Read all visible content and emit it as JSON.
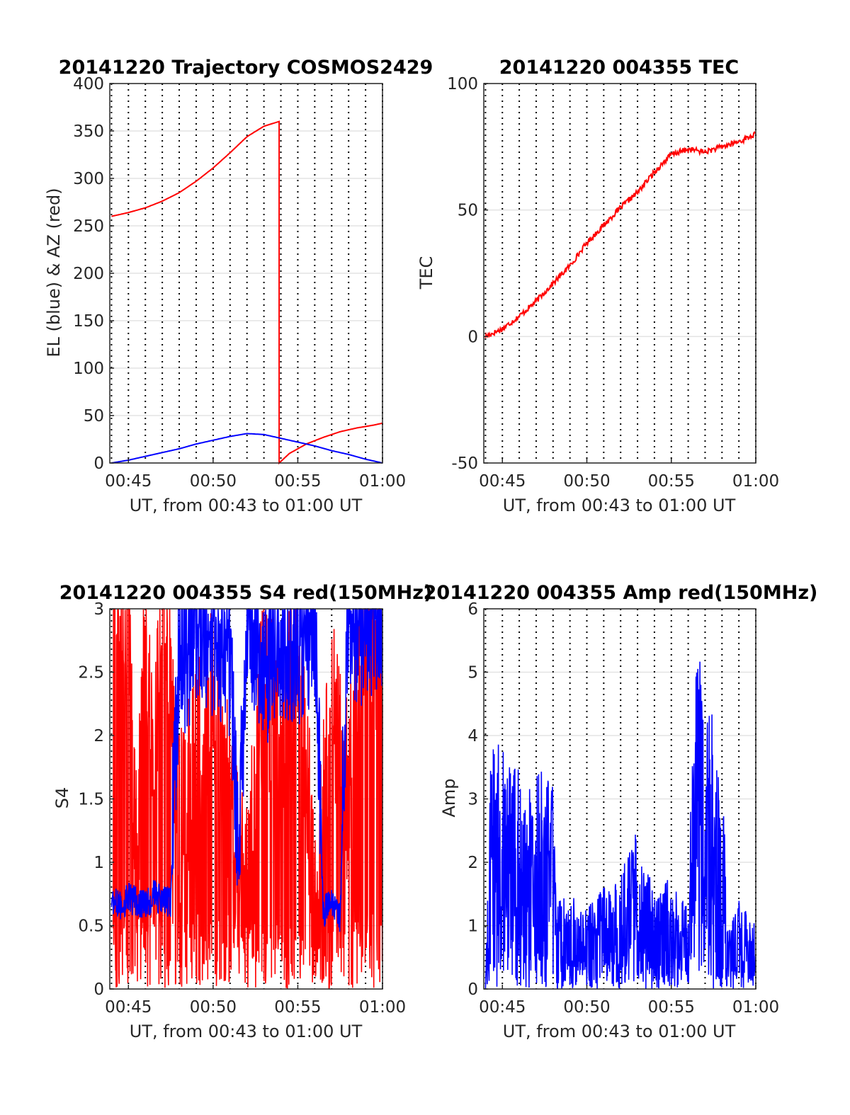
{
  "chart_data": [
    {
      "id": "traj",
      "type": "line",
      "title": "20141220 Trajectory COSMOS2429",
      "xlabel": "UT, from 00:43 to 01:00 UT",
      "ylabel": "EL (blue) & AZ (red)",
      "xlim": [
        43.9,
        60
      ],
      "ylim": [
        0,
        400
      ],
      "xticks": [
        45,
        50,
        55,
        60
      ],
      "xtick_labels": [
        "00:45",
        "00:50",
        "00:55",
        "01:00"
      ],
      "yticks": [
        0,
        50,
        100,
        150,
        200,
        250,
        300,
        350,
        400
      ],
      "ytick_labels": [
        "0",
        "50",
        "100",
        "150",
        "200",
        "250",
        "300",
        "350",
        "400"
      ],
      "grid": true,
      "series": [
        {
          "color": "#ff0000",
          "x": [
            44.0,
            45.0,
            46.0,
            47.0,
            48.0,
            49.0,
            50.0,
            51.0,
            52.0,
            53.0,
            53.9,
            53.9,
            54.5,
            55.5,
            56.5,
            57.5,
            58.5,
            59.5,
            60.0
          ],
          "y": [
            260,
            264,
            269,
            276,
            285,
            297,
            311,
            327,
            344,
            355,
            360,
            0,
            10,
            20,
            27,
            33,
            37,
            40,
            42
          ]
        },
        {
          "color": "#0000ff",
          "x": [
            44.0,
            45.0,
            46.0,
            47.0,
            48.0,
            49.0,
            50.0,
            51.0,
            52.0,
            53.0,
            54.0,
            55.0,
            56.0,
            57.0,
            58.0,
            59.0,
            60.0
          ],
          "y": [
            0,
            3,
            7,
            11,
            15,
            20,
            24,
            28,
            31,
            30,
            26,
            22,
            18,
            13,
            9,
            4,
            0
          ]
        }
      ]
    },
    {
      "id": "tec",
      "type": "line",
      "title": "20141220 004355 TEC",
      "xlabel": "UT, from 00:43 to 01:00 UT",
      "ylabel": "TEC",
      "xlim": [
        43.9,
        60
      ],
      "ylim": [
        -50,
        100
      ],
      "xticks": [
        45,
        50,
        55,
        60
      ],
      "xtick_labels": [
        "00:45",
        "00:50",
        "00:55",
        "01:00"
      ],
      "yticks": [
        -50,
        0,
        50,
        100
      ],
      "ytick_labels": [
        "-50",
        "0",
        "50",
        "100"
      ],
      "grid": true,
      "series": [
        {
          "color": "#ff0000",
          "x": [
            44.0,
            45.0,
            46.0,
            47.0,
            48.0,
            49.0,
            50.0,
            51.0,
            52.0,
            53.0,
            54.0,
            55.0,
            56.0,
            57.0,
            58.0,
            59.0,
            60.0
          ],
          "y": [
            0,
            3,
            8,
            14,
            21,
            28,
            37,
            44,
            51,
            57,
            65,
            72,
            74,
            73,
            75,
            77,
            80
          ]
        }
      ]
    },
    {
      "id": "s4",
      "type": "line",
      "title": "20141220 004355 S4 red(150MHz)",
      "xlabel": "UT, from 00:43 to 01:00 UT",
      "ylabel": "S4",
      "xlim": [
        43.9,
        60
      ],
      "ylim": [
        0,
        3
      ],
      "xticks": [
        45,
        50,
        55,
        60
      ],
      "xtick_labels": [
        "00:45",
        "00:50",
        "00:55",
        "01:00"
      ],
      "yticks": [
        0,
        0.5,
        1,
        1.5,
        2,
        2.5,
        3
      ],
      "ytick_labels": [
        "0",
        "0.5",
        "1",
        "1.5",
        "2",
        "2.5",
        "3"
      ],
      "grid": true,
      "series": [
        {
          "color": "#ff0000",
          "x": [
            44.1,
            44.5,
            45.0,
            45.5,
            46.0,
            46.5,
            47.0,
            47.5,
            48.0,
            50.0,
            52.0,
            53.0,
            54.0,
            55.0,
            56.0,
            57.0,
            58.0,
            59.0,
            60.0
          ],
          "y": [
            3.0,
            2.4,
            2.8,
            0.5,
            2.6,
            1.2,
            2.9,
            2.2,
            1.0,
            2.0,
            0.4,
            2.2,
            1.5,
            2.6,
            0.3,
            2.0,
            1.2,
            2.8,
            2.0
          ]
        },
        {
          "color": "#0000ff",
          "x": [
            44.0,
            44.5,
            45.0,
            45.5,
            46.0,
            46.5,
            47.0,
            47.5,
            48.0,
            48.5,
            49.0,
            50.0,
            51.0,
            51.5,
            52.0,
            53.0,
            54.0,
            55.0,
            56.0,
            56.5,
            57.0,
            57.5,
            58.0,
            58.5,
            59.0,
            60.0
          ],
          "y": [
            0.7,
            0.65,
            0.72,
            0.68,
            0.66,
            0.74,
            0.7,
            0.68,
            2.4,
            2.3,
            2.6,
            2.5,
            2.3,
            0.9,
            2.6,
            2.2,
            2.5,
            2.4,
            2.6,
            0.6,
            0.7,
            0.55,
            2.8,
            2.5,
            2.6,
            2.7
          ]
        }
      ]
    },
    {
      "id": "amp",
      "type": "line",
      "title": "20141220 004355 Amp red(150MHz)",
      "xlabel": "UT, from 00:43 to 01:00 UT",
      "ylabel": "Amp",
      "xlim": [
        43.9,
        60
      ],
      "ylim": [
        0,
        6
      ],
      "xticks": [
        45,
        50,
        55,
        60
      ],
      "xtick_labels": [
        "00:45",
        "00:50",
        "00:55",
        "01:00"
      ],
      "yticks": [
        0,
        1,
        2,
        3,
        4,
        5,
        6
      ],
      "ytick_labels": [
        "0",
        "1",
        "2",
        "3",
        "4",
        "5",
        "6"
      ],
      "grid": true,
      "series": [
        {
          "color": "#0000ff",
          "x": [
            44.0,
            44.3,
            44.8,
            45.0,
            45.5,
            46.0,
            46.5,
            47.0,
            47.5,
            48.0,
            48.2,
            49.0,
            50.0,
            51.0,
            52.0,
            53.0,
            54.0,
            55.0,
            56.0,
            56.2,
            56.5,
            57.0,
            57.5,
            58.0,
            58.3,
            59.0,
            60.0
          ],
          "y": [
            0.0,
            3.8,
            4.5,
            4.0,
            3.5,
            3.6,
            3.7,
            3.4,
            3.5,
            3.6,
            1.4,
            1.5,
            1.3,
            1.6,
            1.8,
            2.6,
            1.5,
            1.8,
            1.3,
            3.5,
            5.7,
            4.5,
            4.3,
            4.1,
            1.0,
            1.5,
            1.0
          ]
        }
      ]
    }
  ]
}
